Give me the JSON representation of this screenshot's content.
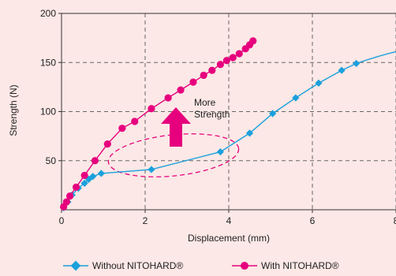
{
  "chart_data": {
    "type": "line",
    "title": "",
    "xlabel": "Displacement (mm)",
    "ylabel": "Strength (N)",
    "xlim": [
      0,
      8
    ],
    "ylim": [
      0,
      200
    ],
    "xticks": [
      0,
      2,
      4,
      6,
      8
    ],
    "yticks": [
      50,
      100,
      150,
      200
    ],
    "grid": "dashed",
    "legend_position": "bottom",
    "series": [
      {
        "name": "Without NITOHARD®",
        "color": "#1AA0DC",
        "marker": "diamond",
        "x": [
          0.05,
          0.15,
          0.25,
          0.4,
          0.55,
          0.65,
          0.75,
          0.95,
          2.15,
          3.8,
          4.5,
          5.05,
          5.6,
          6.15,
          6.7,
          7.05
        ],
        "y": [
          2,
          8,
          15,
          22,
          27,
          31,
          34,
          37,
          41,
          59,
          78,
          98,
          114,
          129,
          142,
          149
        ]
      },
      {
        "name": "With NITOHARD®",
        "color": "#E6007E",
        "marker": "circle",
        "x": [
          0.05,
          0.12,
          0.2,
          0.35,
          0.55,
          0.8,
          1.1,
          1.45,
          1.75,
          2.15,
          2.55,
          2.85,
          3.15,
          3.4,
          3.6,
          3.8,
          3.95,
          4.1,
          4.25,
          4.4,
          4.5,
          4.58
        ],
        "y": [
          3,
          8,
          14,
          23,
          35,
          50,
          67,
          83,
          90,
          103,
          114,
          122,
          130,
          137,
          142,
          148,
          152,
          155,
          159,
          164,
          168,
          172
        ]
      }
    ],
    "annotations": {
      "arrow_text_1": "More",
      "arrow_text_2": "Strength"
    }
  }
}
